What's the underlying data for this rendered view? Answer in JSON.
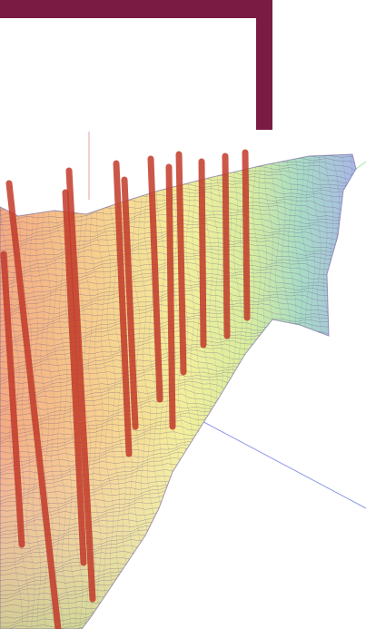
{
  "colors": {
    "frame": "#7a1b43",
    "background": "#ffffff",
    "wells": "#c23a2a",
    "mesh_line": "#5b4a8a",
    "surface_gradient": [
      "#f0a67a",
      "#f6d98c",
      "#f2f29a",
      "#b9e4a0",
      "#9fd6d6",
      "#a8b4e8"
    ],
    "axis_x": "#8f98e8",
    "axis_y": "#e8a0a0",
    "axis_z": "#9ee89e"
  },
  "icons": {
    "frame": "decorative-frame",
    "model": "3d-wireframe-surface"
  },
  "scene": {
    "type": "3d-mesh-cross-section",
    "well_count": 12
  }
}
